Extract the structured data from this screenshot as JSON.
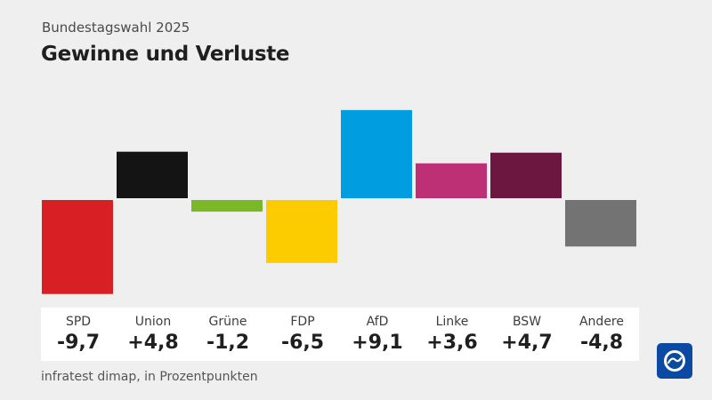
{
  "header": {
    "subtitle": "Bundestagswahl 2025",
    "title": "Gewinne und Verluste"
  },
  "footer": {
    "source": "infratest dimap, in Prozentpunkten"
  },
  "chart_data": {
    "type": "bar",
    "title": "Gewinne und Verluste",
    "subtitle": "Bundestagswahl 2025",
    "categories": [
      "SPD",
      "Union",
      "Grüne",
      "FDP",
      "AfD",
      "Linke",
      "BSW",
      "Andere"
    ],
    "values": [
      -9.7,
      4.8,
      -1.2,
      -6.5,
      9.1,
      3.6,
      4.7,
      -4.8
    ],
    "value_labels": [
      "-9,7",
      "+4,8",
      "-1,2",
      "-6,5",
      "+9,1",
      "+3,6",
      "+4,7",
      "-4,8"
    ],
    "colors": [
      "#d81f24",
      "#141414",
      "#7ab828",
      "#fccc00",
      "#009ee0",
      "#be3075",
      "#6b1740",
      "#737373"
    ],
    "unit": "Prozentpunkte",
    "grid": false,
    "legend": "none"
  }
}
